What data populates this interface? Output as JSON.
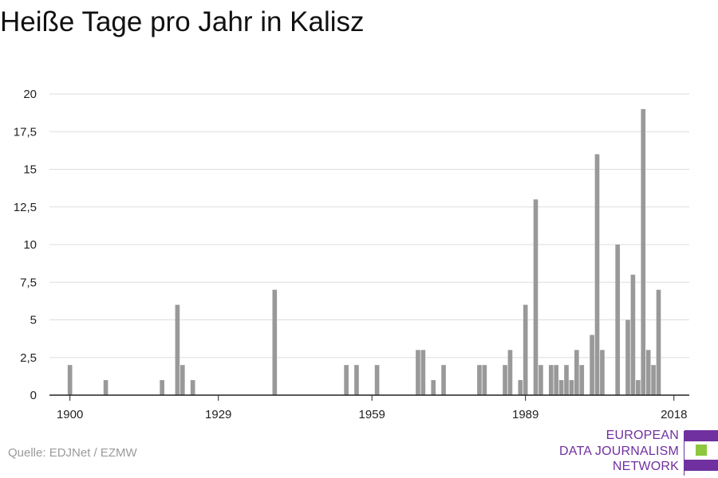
{
  "title": "Heiße Tage pro Jahr in Kalisz",
  "source": "Quelle: EDJNet / EZMW",
  "logo": {
    "lines": [
      "EUROPEAN",
      "DATA JOURNALISM",
      "NETWORK"
    ],
    "colors": {
      "purple": "#7030a0",
      "green": "#8dc63f"
    }
  },
  "chart_data": {
    "type": "bar",
    "title": "Heiße Tage pro Jahr in Kalisz",
    "xlabel": "",
    "ylabel": "",
    "xlim": [
      1896,
      2021
    ],
    "ylim": [
      0,
      20
    ],
    "yticks": [
      0,
      2.5,
      5,
      7.5,
      10,
      12.5,
      15,
      17.5,
      20
    ],
    "ytick_labels": [
      "0",
      "2,5",
      "5",
      "7,5",
      "10",
      "12,5",
      "15",
      "17,5",
      "20"
    ],
    "xticks": [
      1900,
      1929,
      1959,
      1989,
      2018
    ],
    "xtick_labels": [
      "1900",
      "1929",
      "1959",
      "1989",
      "2018"
    ],
    "grid": true,
    "bar_color": "#999999",
    "points": [
      {
        "x": 1900,
        "y": 2
      },
      {
        "x": 1907,
        "y": 1
      },
      {
        "x": 1918,
        "y": 1
      },
      {
        "x": 1921,
        "y": 6
      },
      {
        "x": 1922,
        "y": 2
      },
      {
        "x": 1924,
        "y": 1
      },
      {
        "x": 1940,
        "y": 7
      },
      {
        "x": 1954,
        "y": 2
      },
      {
        "x": 1956,
        "y": 2
      },
      {
        "x": 1960,
        "y": 2
      },
      {
        "x": 1968,
        "y": 3
      },
      {
        "x": 1969,
        "y": 3
      },
      {
        "x": 1971,
        "y": 1
      },
      {
        "x": 1973,
        "y": 2
      },
      {
        "x": 1980,
        "y": 2
      },
      {
        "x": 1981,
        "y": 2
      },
      {
        "x": 1985,
        "y": 2
      },
      {
        "x": 1986,
        "y": 3
      },
      {
        "x": 1988,
        "y": 1
      },
      {
        "x": 1989,
        "y": 6
      },
      {
        "x": 1991,
        "y": 13
      },
      {
        "x": 1992,
        "y": 2
      },
      {
        "x": 1994,
        "y": 2
      },
      {
        "x": 1995,
        "y": 2
      },
      {
        "x": 1996,
        "y": 1
      },
      {
        "x": 1997,
        "y": 2
      },
      {
        "x": 1998,
        "y": 1
      },
      {
        "x": 1999,
        "y": 3
      },
      {
        "x": 2000,
        "y": 2
      },
      {
        "x": 2002,
        "y": 4
      },
      {
        "x": 2003,
        "y": 16
      },
      {
        "x": 2004,
        "y": 3
      },
      {
        "x": 2007,
        "y": 10
      },
      {
        "x": 2009,
        "y": 5
      },
      {
        "x": 2010,
        "y": 8
      },
      {
        "x": 2011,
        "y": 1
      },
      {
        "x": 2012,
        "y": 19
      },
      {
        "x": 2013,
        "y": 3
      },
      {
        "x": 2014,
        "y": 2
      },
      {
        "x": 2015,
        "y": 7
      }
    ]
  }
}
